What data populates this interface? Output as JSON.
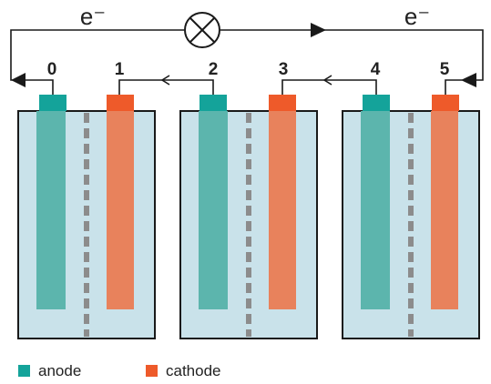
{
  "colors": {
    "anode": "#5cb5ad",
    "cathode": "#e8825c",
    "anode_tab": "#14a39a",
    "cathode_tab": "#ee5a2a",
    "cell_fill": "#c9e2ea",
    "separator": "#8c8c8c",
    "wire": "#1a1a1a"
  },
  "circuit": {
    "electron_left": "e⁻",
    "electron_right": "e⁻",
    "bulb_icon": "light-bulb-icon"
  },
  "terminals": [
    {
      "number": "0",
      "type": "anode"
    },
    {
      "number": "1",
      "type": "cathode"
    },
    {
      "number": "2",
      "type": "anode"
    },
    {
      "number": "3",
      "type": "cathode"
    },
    {
      "number": "4",
      "type": "anode"
    },
    {
      "number": "5",
      "type": "cathode"
    }
  ],
  "legend": {
    "anode_label": "anode",
    "cathode_label": "cathode"
  }
}
